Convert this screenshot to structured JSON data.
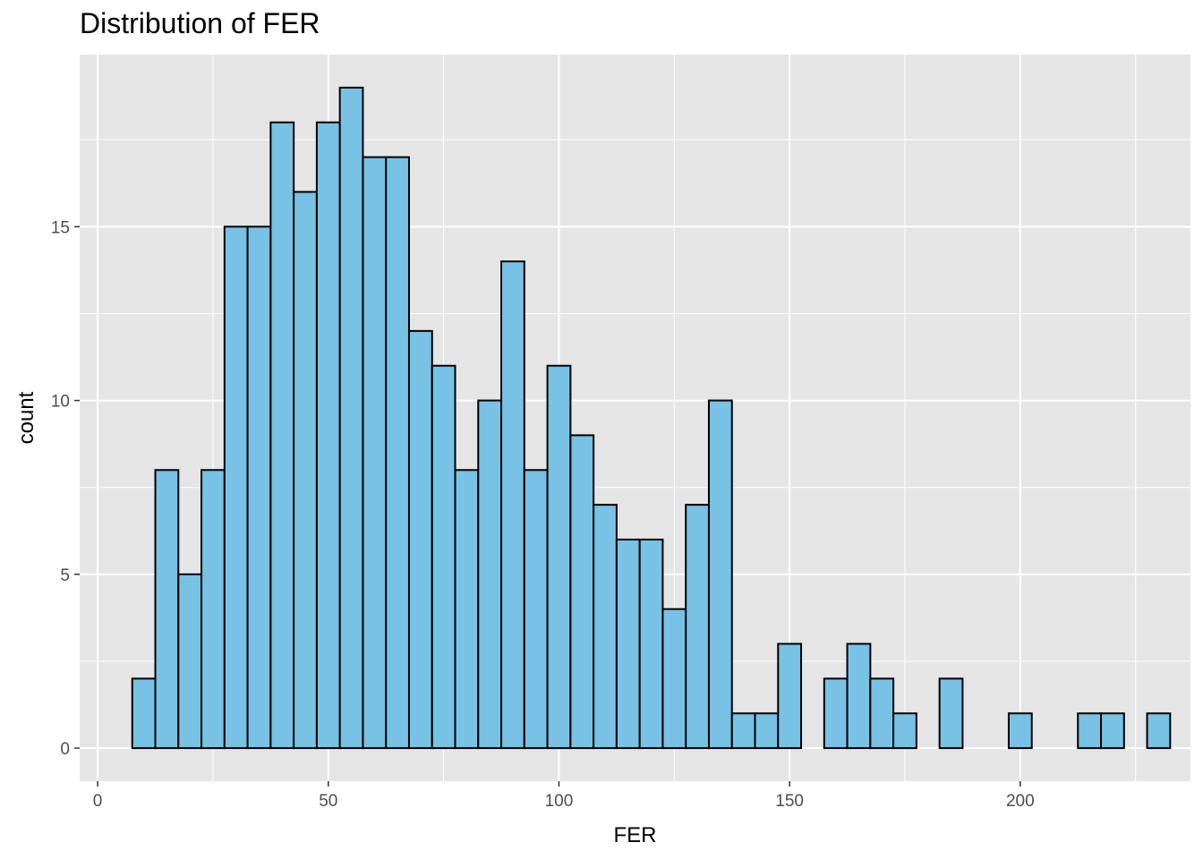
{
  "chart_data": {
    "type": "bar",
    "subtype": "histogram",
    "title": "Distribution of FER",
    "xlabel": "FER",
    "ylabel": "count",
    "xlim": [
      -3.9,
      236.9
    ],
    "ylim": [
      -0.95,
      19.95
    ],
    "x_ticks": [
      0,
      50,
      100,
      150,
      200
    ],
    "x_tick_labels": [
      "0",
      "50",
      "100",
      "150",
      "200"
    ],
    "y_ticks": [
      0,
      5,
      10,
      15
    ],
    "y_tick_labels": [
      "0",
      "5",
      "10",
      "15"
    ],
    "bin_start": 7.5,
    "bin_width": 5,
    "values": [
      2,
      8,
      5,
      8,
      15,
      15,
      18,
      16,
      18,
      19,
      17,
      17,
      12,
      11,
      8,
      10,
      14,
      8,
      11,
      9,
      7,
      6,
      6,
      4,
      7,
      10,
      1,
      1,
      3,
      0,
      2,
      3,
      2,
      1,
      0,
      2,
      0,
      0,
      1,
      0,
      0,
      1,
      1,
      0,
      1
    ],
    "grid": true,
    "legend": "none",
    "colors": {
      "bar_fill": "#77c2e5",
      "bar_outline": "#000000",
      "panel_background": "#e5e5e5",
      "grid_line": "#ffffff",
      "tick_text": "#4d4d4d",
      "tick_mark": "#333333"
    }
  }
}
